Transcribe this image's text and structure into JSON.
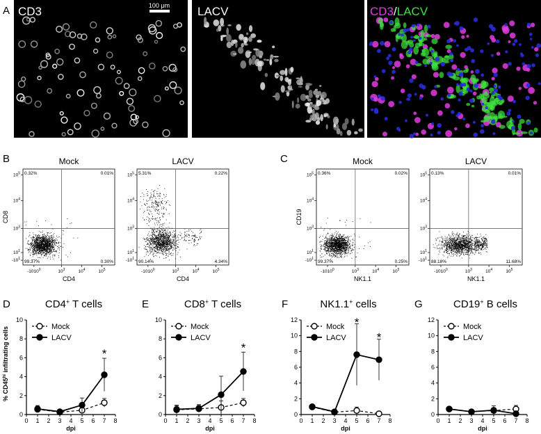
{
  "panel_letters": {
    "A": "A",
    "B": "B",
    "C": "C",
    "D": "D",
    "E": "E",
    "F": "F",
    "G": "G"
  },
  "micrographs": {
    "scale_bar": "100 μm",
    "cd3": "CD3",
    "lacv": "LACV",
    "merge_a": "CD3",
    "merge_sep": "/",
    "merge_b": "LACV",
    "colors": {
      "cd3": "#e23ce0",
      "lacv": "#3ee23e",
      "nuclei": "#2a2ad8"
    }
  },
  "flow": {
    "B": {
      "ylabel": "CD8",
      "xlabel": "CD4",
      "mock": {
        "title": "Mock",
        "ul": "0.32%",
        "ur": "0.01%",
        "ll": "99.37%",
        "lr": "0.30%"
      },
      "lacv": {
        "title": "LACV",
        "ul": "5.31%",
        "ur": "0.22%",
        "ll": "90.14%",
        "lr": "4.34%"
      }
    },
    "C": {
      "ylabel": "CD19",
      "xlabel": "NK1.1",
      "mock": {
        "title": "Mock",
        "ul": "0.36%",
        "ur": "0.02%",
        "ll": "99.37%",
        "lr": "0.25%"
      },
      "lacv": {
        "title": "LACV",
        "ul": "0.13%",
        "ur": "0.01%",
        "ll": "88.18%",
        "lr": "11.68%"
      }
    },
    "ticks": {
      "y": [
        {
          "v": "10",
          "e": "5"
        },
        {
          "v": "10",
          "e": "4"
        },
        {
          "v": "10",
          "e": "3"
        },
        {
          "v": "10",
          "e": "1"
        },
        {
          "v": "-10",
          "e": "1"
        }
      ],
      "x": [
        {
          "v": "-1010",
          "e": "0"
        },
        {
          "v": "10",
          "e": "3"
        },
        {
          "v": "10",
          "e": "4"
        },
        {
          "v": "10",
          "e": "5"
        }
      ]
    }
  },
  "ylabel_pre": "% CD45",
  "ylabel_sup": "hi",
  "ylabel_post": " infiltrating cells",
  "chart_data": [
    {
      "type": "line",
      "panel": "D",
      "title_pre": "CD4",
      "title_sup": "+",
      "title_post": " T cells",
      "xlabel": "dpi",
      "xlim": [
        0,
        8
      ],
      "ylim": [
        0,
        10
      ],
      "xticks": [
        0,
        1,
        2,
        3,
        4,
        5,
        6,
        7,
        8
      ],
      "yticks": [
        0,
        2,
        4,
        6,
        8,
        10
      ],
      "x": [
        1,
        3,
        5,
        7
      ],
      "series": [
        {
          "name": "Mock",
          "values": [
            0.55,
            0.25,
            0.45,
            1.25
          ],
          "err": [
            0.2,
            0.1,
            0.2,
            0.45
          ],
          "style": "dashed",
          "marker": "open"
        },
        {
          "name": "LACV",
          "values": [
            0.6,
            0.3,
            1.0,
            4.2
          ],
          "err": [
            0.35,
            0.1,
            0.75,
            1.75
          ],
          "style": "solid",
          "marker": "filled"
        }
      ],
      "annotations": [
        {
          "x": 7,
          "y": 6.6,
          "text": "*"
        }
      ]
    },
    {
      "type": "line",
      "panel": "E",
      "title_pre": "CD8",
      "title_sup": "+",
      "title_post": " T cells",
      "xlabel": "dpi",
      "xlim": [
        0,
        8
      ],
      "ylim": [
        0,
        10
      ],
      "xticks": [
        0,
        1,
        2,
        3,
        4,
        5,
        6,
        7,
        8
      ],
      "yticks": [
        0,
        2,
        4,
        6,
        8,
        10
      ],
      "x": [
        1,
        3,
        5,
        7
      ],
      "series": [
        {
          "name": "Mock",
          "values": [
            0.5,
            0.6,
            0.75,
            1.25
          ],
          "err": [
            0.4,
            0.35,
            0.7,
            0.45
          ],
          "style": "dashed",
          "marker": "open"
        },
        {
          "name": "LACV",
          "values": [
            0.55,
            0.65,
            2.1,
            4.55
          ],
          "err": [
            0.45,
            0.4,
            1.95,
            2.05
          ],
          "style": "solid",
          "marker": "filled"
        }
      ],
      "annotations": [
        {
          "x": 7,
          "y": 7.25,
          "text": "*"
        }
      ]
    },
    {
      "type": "line",
      "panel": "F",
      "title_pre": "NK1.1",
      "title_sup": "+",
      "title_post": " cells",
      "xlabel": "dpi",
      "xlim": [
        0,
        8
      ],
      "ylim": [
        0,
        12
      ],
      "xticks": [
        0,
        1,
        2,
        3,
        4,
        5,
        6,
        7,
        8
      ],
      "yticks": [
        0,
        2,
        4,
        6,
        8,
        10,
        12
      ],
      "x": [
        1,
        3,
        5,
        7
      ],
      "series": [
        {
          "name": "Mock",
          "values": [
            0.95,
            0.3,
            0.5,
            0.1
          ],
          "err": [
            0.2,
            0.1,
            0.45,
            0.15
          ],
          "style": "dashed",
          "marker": "open"
        },
        {
          "name": "LACV",
          "values": [
            1.0,
            0.35,
            7.6,
            6.95
          ],
          "err": [
            0.25,
            0.1,
            3.9,
            2.6
          ],
          "style": "solid",
          "marker": "filled"
        }
      ],
      "annotations": [
        {
          "x": 5,
          "y": 11.9,
          "text": "*"
        },
        {
          "x": 7,
          "y": 10.0,
          "text": "*"
        }
      ]
    },
    {
      "type": "line",
      "panel": "G",
      "title_pre": "CD19",
      "title_sup": "+",
      "title_post": " B cells",
      "xlabel": "dpi",
      "xlim": [
        0,
        8
      ],
      "ylim": [
        0,
        12
      ],
      "xticks": [
        0,
        1,
        2,
        3,
        4,
        5,
        6,
        7,
        8
      ],
      "yticks": [
        0,
        2,
        4,
        6,
        8,
        10,
        12
      ],
      "x": [
        1,
        3,
        5,
        7
      ],
      "series": [
        {
          "name": "Mock",
          "values": [
            0.7,
            0.35,
            0.5,
            0.7
          ],
          "err": [
            0.15,
            0.25,
            0.35,
            0.45
          ],
          "style": "dashed",
          "marker": "open"
        },
        {
          "name": "LACV",
          "values": [
            0.7,
            0.35,
            0.55,
            0.1
          ],
          "err": [
            0.15,
            0.25,
            0.55,
            0.1
          ],
          "style": "solid",
          "marker": "filled"
        }
      ],
      "annotations": []
    }
  ]
}
